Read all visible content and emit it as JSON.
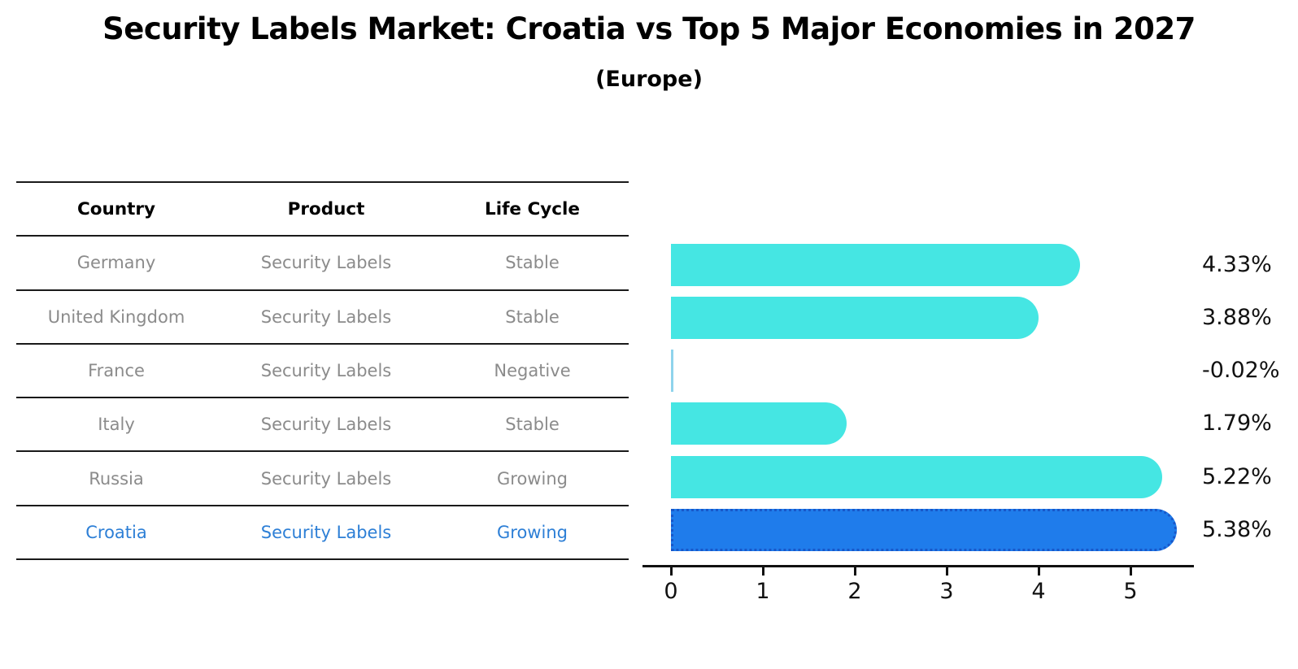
{
  "title": "Security Labels Market: Croatia vs Top 5 Major Economies in 2027",
  "subtitle": "(Europe)",
  "table": {
    "columns": [
      "Country",
      "Product",
      "Life Cycle"
    ],
    "rows": [
      {
        "country": "Germany",
        "product": "Security Labels",
        "life_cycle": "Stable",
        "highlight": false
      },
      {
        "country": "United Kingdom",
        "product": "Security Labels",
        "life_cycle": "Stable",
        "highlight": false
      },
      {
        "country": "France",
        "product": "Security Labels",
        "life_cycle": "Negative",
        "highlight": false
      },
      {
        "country": "Italy",
        "product": "Security Labels",
        "life_cycle": "Stable",
        "highlight": false
      },
      {
        "country": "Russia",
        "product": "Security Labels",
        "life_cycle": "Growing",
        "highlight": false
      },
      {
        "country": "Croatia",
        "product": "Security Labels",
        "life_cycle": "Growing",
        "highlight": true
      }
    ]
  },
  "chart_data": {
    "type": "bar",
    "orientation": "horizontal",
    "categories": [
      "Germany",
      "United Kingdom",
      "France",
      "Italy",
      "Russia",
      "Croatia"
    ],
    "values": [
      4.33,
      3.88,
      -0.02,
      1.79,
      5.22,
      5.38
    ],
    "value_labels": [
      "4.33%",
      "3.88%",
      "-0.02%",
      "1.79%",
      "5.22%",
      "5.38%"
    ],
    "title": "",
    "xlabel": "",
    "ylabel": "",
    "xticks": [
      "0",
      "1",
      "2",
      "3",
      "4",
      "5"
    ],
    "xlim": [
      0,
      5.7
    ],
    "grid": false,
    "legend": "none",
    "highlight_category": "Croatia",
    "bar_color": "#45e6e3",
    "highlight_bar_color": "#1f7ceb",
    "highlight_border_color": "#1757c9",
    "negative_bar_color": "#8fd4ec"
  },
  "colors": {
    "title_text": "#000000",
    "table_row_text": "#8b8b8b",
    "highlight_text": "#2d7fd6",
    "table_line": "#1a1a1a",
    "axis": "#111111",
    "background": "#ffffff"
  }
}
